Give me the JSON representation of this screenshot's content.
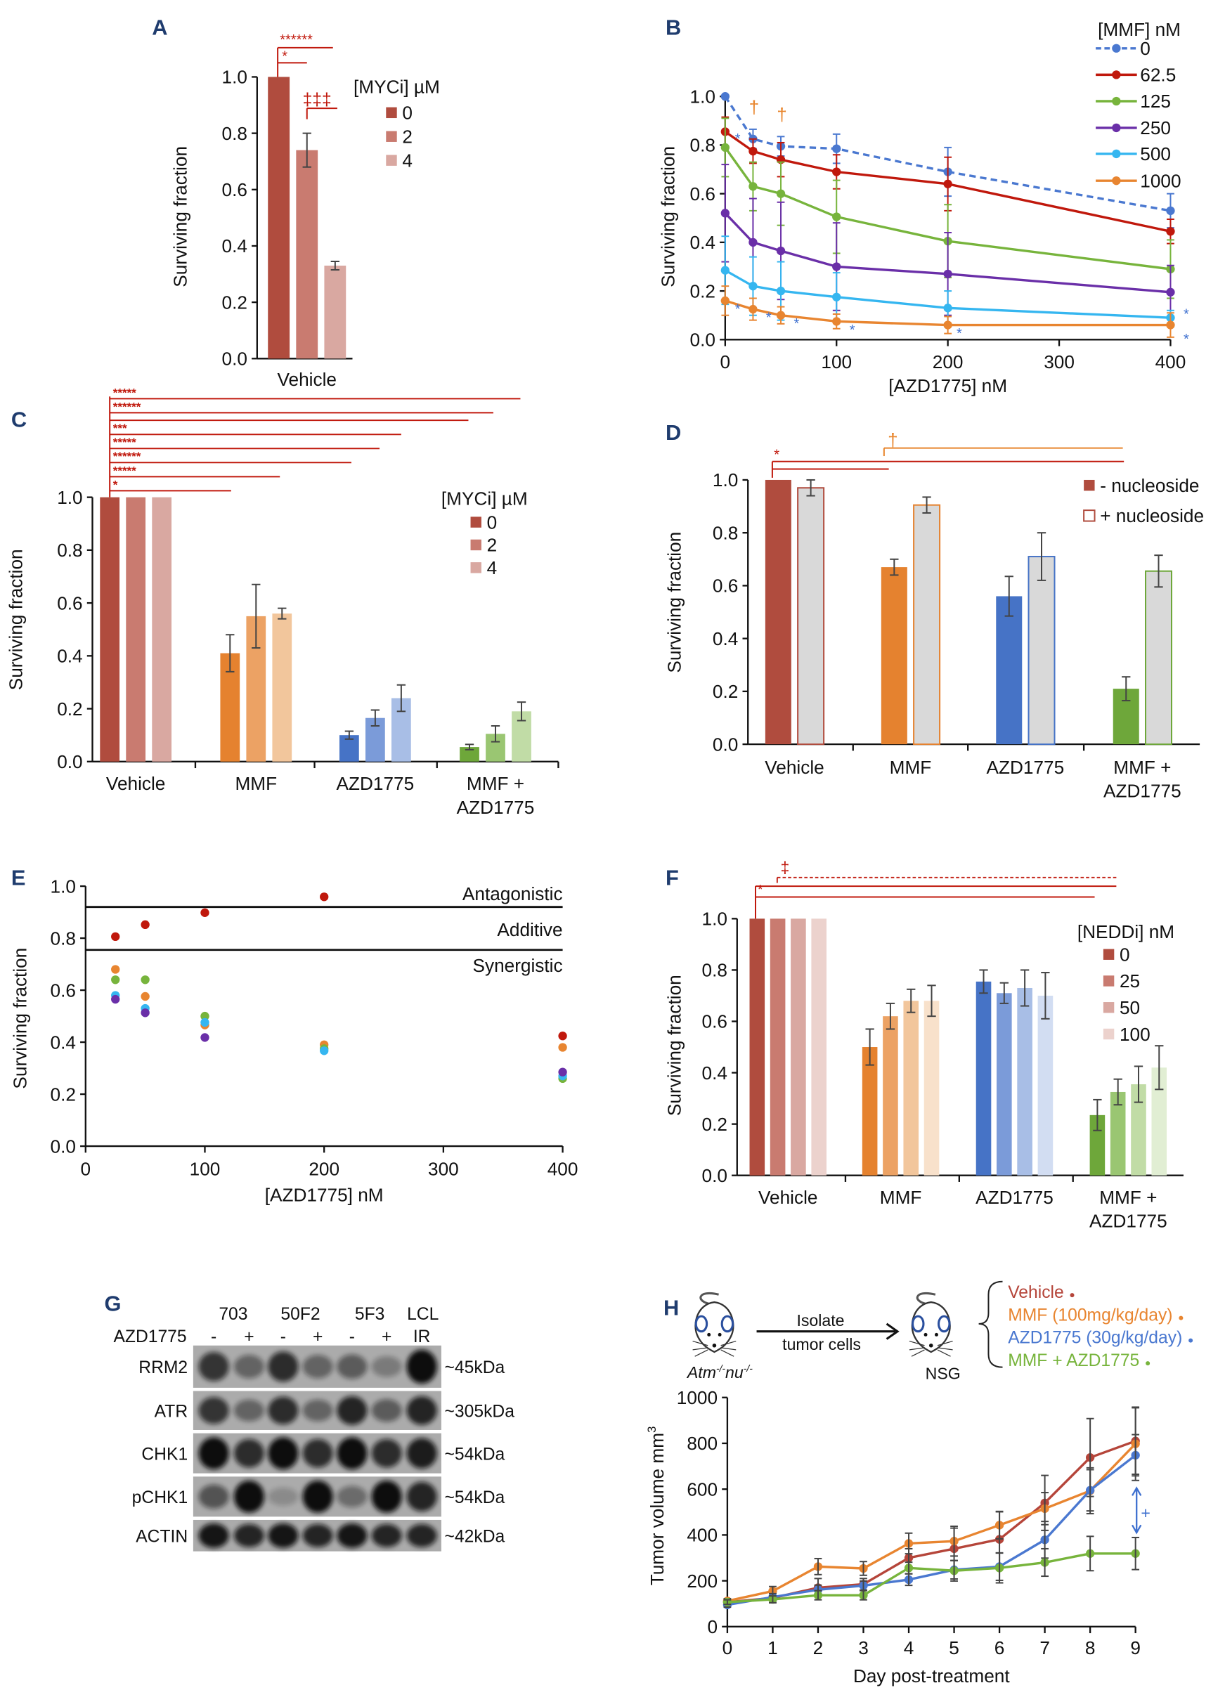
{
  "panel_letters": [
    "A",
    "B",
    "C",
    "D",
    "E",
    "F",
    "G",
    "H"
  ],
  "colors": {
    "vehicle": [
      "#b04c3e",
      "#c97b70",
      "#d9a8a1",
      "#ecd2cd"
    ],
    "mmf": [
      "#e5822f",
      "#eca264",
      "#f2c69c",
      "#f8e1cb"
    ],
    "azd": [
      "#4673c6",
      "#7b9bd9",
      "#a8bee6",
      "#d2ddf2"
    ],
    "combo": [
      "#6ea73a",
      "#9ac672",
      "#c1dca6",
      "#e1eed3"
    ],
    "significance_red": "#c0180c",
    "significance_orange": "#e8852c",
    "significance_blue": "#3d6fcf",
    "panel_letter": "#1f3c6e"
  },
  "chart_data": [
    {
      "panel": "A",
      "type": "bar",
      "ylabel": "Surviving fraction",
      "ylim": [
        0,
        1
      ],
      "yticks": [
        "0.0",
        "0.2",
        "0.4",
        "0.6",
        "0.8",
        "1.0"
      ],
      "categories": [
        [
          "Vehicle"
        ]
      ],
      "legend_title": "[MYCi] µM",
      "legend_placement": "right",
      "series": [
        {
          "name": "0",
          "colors": [
            "#b04c3e"
          ],
          "values": [
            1.0
          ],
          "err": [
            0
          ]
        },
        {
          "name": "2",
          "colors": [
            "#c97b70"
          ],
          "values": [
            0.74
          ],
          "err": [
            0.06
          ]
        },
        {
          "name": "4",
          "colors": [
            "#d9a8a1"
          ],
          "values": [
            0.33
          ],
          "err": [
            0.015
          ]
        }
      ],
      "annotations": [
        "******",
        "*",
        "‡‡‡"
      ]
    },
    {
      "panel": "B",
      "type": "line",
      "xlabel": "[AZD1775] nM",
      "ylabel": "Surviving fraction",
      "xlim": [
        0,
        400
      ],
      "ylim": [
        0,
        1
      ],
      "xticks": [
        "0",
        "100",
        "200",
        "300",
        "400"
      ],
      "yticks": [
        "0.0",
        "0.2",
        "0.4",
        "0.6",
        "0.8",
        "1.0"
      ],
      "x": [
        0,
        25,
        50,
        100,
        200,
        400
      ],
      "legend_title": "[MMF] nM",
      "legend_placement": "top-right",
      "series": [
        {
          "name": "0",
          "color": "#4a78d0",
          "dashed": true,
          "values": [
            1.0,
            0.825,
            0.795,
            0.785,
            0.69,
            0.53
          ],
          "err": [
            0,
            0.04,
            0.04,
            0.06,
            0.1,
            0.07
          ]
        },
        {
          "name": "62.5",
          "color": "#c0180c",
          "values": [
            0.855,
            0.775,
            0.74,
            0.69,
            0.64,
            0.445
          ],
          "err": [
            0.06,
            0.05,
            0.07,
            0.07,
            0.11,
            0.05
          ]
        },
        {
          "name": "125",
          "color": "#77b43c",
          "values": [
            0.79,
            0.63,
            0.6,
            0.505,
            0.405,
            0.29
          ],
          "err": [
            0.12,
            0.1,
            0.13,
            0.15,
            0.15,
            0.12
          ]
        },
        {
          "name": "250",
          "color": "#6a2fa8",
          "values": [
            0.52,
            0.4,
            0.365,
            0.3,
            0.27,
            0.195
          ],
          "err": [
            0.2,
            0.18,
            0.2,
            0.18,
            0.17,
            0.11
          ]
        },
        {
          "name": "500",
          "color": "#35b6f0",
          "values": [
            0.285,
            0.22,
            0.2,
            0.175,
            0.13,
            0.09
          ],
          "err": [
            0.14,
            0.12,
            0.12,
            0.1,
            0.07,
            0.03
          ]
        },
        {
          "name": "1000",
          "color": "#e88530",
          "values": [
            0.16,
            0.125,
            0.1,
            0.075,
            0.06,
            0.06
          ],
          "err": [
            0.06,
            0.045,
            0.035,
            0.03,
            0.035,
            0.05
          ]
        }
      ],
      "annotations": {
        "dagger": "†",
        "asterisk": "*"
      }
    },
    {
      "panel": "C",
      "type": "bar",
      "ylabel": "Surviving fraction",
      "ylim": [
        0,
        1
      ],
      "yticks": [
        "0.0",
        "0.2",
        "0.4",
        "0.6",
        "0.8",
        "1.0"
      ],
      "categories": [
        [
          "Vehicle"
        ],
        [
          "MMF"
        ],
        [
          "AZD1775"
        ],
        [
          "MMF +",
          "AZD1775"
        ]
      ],
      "legend_title": "[MYCi] µM",
      "legend_placement": "right",
      "series": [
        {
          "name": "0",
          "colors": [
            "#b04c3e",
            "#e5822f",
            "#4673c6",
            "#6ea73a"
          ],
          "values": [
            1.0,
            0.41,
            0.1,
            0.055
          ],
          "err": [
            0,
            0.07,
            0.015,
            0.01
          ]
        },
        {
          "name": "2",
          "colors": [
            "#c97b70",
            "#eca264",
            "#7b9bd9",
            "#9ac672"
          ],
          "values": [
            1.0,
            0.55,
            0.165,
            0.105
          ],
          "err": [
            0,
            0.12,
            0.03,
            0.03
          ]
        },
        {
          "name": "4",
          "colors": [
            "#d9a8a1",
            "#f2c69c",
            "#a8bee6",
            "#c1dca6"
          ],
          "values": [
            1.0,
            0.56,
            0.24,
            0.19
          ],
          "err": [
            0,
            0.02,
            0.05,
            0.035
          ]
        }
      ],
      "annotations": [
        "*****",
        "******",
        "***",
        "*****",
        "******",
        "*****",
        "*"
      ]
    },
    {
      "panel": "D",
      "type": "bar",
      "ylabel": "Surviving fraction",
      "ylim": [
        0,
        1
      ],
      "yticks": [
        "0.0",
        "0.2",
        "0.4",
        "0.6",
        "0.8",
        "1.0"
      ],
      "categories": [
        [
          "Vehicle"
        ],
        [
          "MMF"
        ],
        [
          "AZD1775"
        ],
        [
          "MMF +",
          "AZD1775"
        ]
      ],
      "legend_placement": "top-right",
      "series": [
        {
          "name": "- nucleoside",
          "colors": [
            "#b04c3e",
            "#e5822f",
            "#4673c6",
            "#6ea73a"
          ],
          "values": [
            1.0,
            0.67,
            0.56,
            0.21
          ],
          "err": [
            0,
            0.03,
            0.075,
            0.045
          ]
        },
        {
          "name": "+ nucleoside",
          "fill": "#d9d9d9",
          "stroke_colors": [
            "#b04c3e",
            "#e5822f",
            "#4673c6",
            "#6ea73a"
          ],
          "values": [
            0.97,
            0.905,
            0.71,
            0.655
          ],
          "err": [
            0.03,
            0.03,
            0.09,
            0.06
          ]
        }
      ],
      "annotations": [
        "*",
        "†"
      ]
    },
    {
      "panel": "E",
      "type": "scatter",
      "xlabel": "[AZD1775] nM",
      "ylabel": "Surviving fraction",
      "xlim": [
        0,
        400
      ],
      "ylim": [
        0,
        1
      ],
      "xticks": [
        "0",
        "100",
        "200",
        "300",
        "400"
      ],
      "yticks": [
        "0.0",
        "0.2",
        "0.4",
        "0.6",
        "0.8",
        "1.0"
      ],
      "thresholds": [
        0.92,
        0.755
      ],
      "regions": [
        "Antagonistic",
        "Additive",
        "Synergistic"
      ],
      "series": [
        {
          "color": "#c0180c",
          "x": [
            25,
            50,
            100,
            200,
            400
          ],
          "values": [
            0.806,
            0.852,
            0.898,
            0.959,
            0.424
          ]
        },
        {
          "color": "#e88530",
          "x": [
            25,
            50,
            100,
            200,
            400
          ],
          "values": [
            0.68,
            0.576,
            0.466,
            0.39,
            0.38
          ]
        },
        {
          "color": "#77b43c",
          "x": [
            25,
            50,
            100,
            200,
            400
          ],
          "values": [
            0.64,
            0.64,
            0.5,
            0.375,
            0.26
          ]
        },
        {
          "color": "#35b6f0",
          "x": [
            25,
            50,
            100,
            200,
            400
          ],
          "values": [
            0.58,
            0.53,
            0.476,
            0.367,
            0.27
          ]
        },
        {
          "color": "#6a2fa8",
          "x": [
            25,
            50,
            100,
            400
          ],
          "values": [
            0.565,
            0.513,
            0.418,
            0.285
          ]
        }
      ]
    },
    {
      "panel": "F",
      "type": "bar",
      "ylabel": "Surviving fraction",
      "ylim": [
        0,
        1
      ],
      "yticks": [
        "0.0",
        "0.2",
        "0.4",
        "0.6",
        "0.8",
        "1.0"
      ],
      "categories": [
        [
          "Vehicle"
        ],
        [
          "MMF"
        ],
        [
          "AZD1775"
        ],
        [
          "MMF +",
          "AZD1775"
        ]
      ],
      "legend_title": "[NEDDi] nM",
      "legend_placement": "right",
      "series": [
        {
          "name": "0",
          "colors": [
            "#b04c3e",
            "#e5822f",
            "#4673c6",
            "#6ea73a"
          ],
          "values": [
            1.0,
            0.5,
            0.755,
            0.235
          ],
          "err": [
            0,
            0.07,
            0.045,
            0.06
          ]
        },
        {
          "name": "25",
          "colors": [
            "#c97b70",
            "#eca264",
            "#7b9bd9",
            "#9ac672"
          ],
          "values": [
            1.0,
            0.62,
            0.71,
            0.325
          ],
          "err": [
            0,
            0.05,
            0.04,
            0.05
          ]
        },
        {
          "name": "50",
          "colors": [
            "#d9a8a1",
            "#f2c69c",
            "#a8bee6",
            "#c1dca6"
          ],
          "values": [
            1.0,
            0.68,
            0.73,
            0.355
          ],
          "err": [
            0,
            0.045,
            0.07,
            0.07
          ]
        },
        {
          "name": "100",
          "colors": [
            "#ecd2cd",
            "#f8e1cb",
            "#d2ddf2",
            "#e1eed3"
          ],
          "values": [
            1.0,
            0.68,
            0.7,
            0.42
          ],
          "err": [
            0,
            0.06,
            0.09,
            0.085
          ]
        }
      ],
      "annotations": [
        "*",
        "‡"
      ]
    },
    {
      "panel": "H",
      "type": "line",
      "xlabel": "Day post-treatment",
      "ylabel": "Tumor volume mm",
      "ylabel_sup": "3",
      "xlim": [
        0,
        9
      ],
      "ylim": [
        0,
        1000
      ],
      "xticks": [
        "0",
        "1",
        "2",
        "3",
        "4",
        "5",
        "6",
        "7",
        "8",
        "9"
      ],
      "yticks": [
        "0",
        "200",
        "400",
        "600",
        "800",
        "1000"
      ],
      "x": [
        0,
        1,
        2,
        3,
        4,
        5,
        6,
        7,
        8,
        9
      ],
      "series": [
        {
          "name": "Vehicle",
          "color": "#b5453a",
          "values": [
            107,
            125,
            170,
            185,
            300,
            340,
            381,
            540,
            738,
            810
          ],
          "err": [
            10,
            20,
            40,
            25,
            40,
            90,
            120,
            120,
            170,
            145
          ]
        },
        {
          "name": "MMF (100mg/kg/day)",
          "color": "#e88530",
          "values": [
            112,
            155,
            262,
            254,
            363,
            373,
            443,
            515,
            593,
            798
          ],
          "err": [
            10,
            20,
            35,
            30,
            45,
            65,
            60,
            70,
            100,
            160
          ]
        },
        {
          "name": "AZD1775 (30g/kg/day)",
          "color": "#4a78d0",
          "values": [
            95,
            129,
            161,
            179,
            205,
            248,
            262,
            379,
            595,
            748
          ],
          "err": [
            10,
            15,
            20,
            20,
            25,
            40,
            60,
            80,
            90,
            90
          ]
        },
        {
          "name": "MMF + AZD1775",
          "color": "#77b43c",
          "values": [
            107,
            119,
            137,
            137,
            256,
            244,
            256,
            280,
            319,
            319
          ],
          "err": [
            10,
            15,
            20,
            20,
            25,
            45,
            65,
            60,
            75,
            70
          ]
        }
      ],
      "annotation": "+",
      "legend_dot": "●",
      "schematic": {
        "donor_gene": "Atm",
        "donor_sup1": "-/-",
        "donor_gene2": "nu",
        "donor_sup2": "-/-",
        "arrow_line1": "Isolate",
        "arrow_line2": "tumor cells",
        "recipient": "NSG"
      }
    }
  ],
  "western_blot": {
    "panel": "G",
    "cell_lines": [
      "703",
      "50F2",
      "5F3",
      "LCL"
    ],
    "treatment_label": "AZD1775",
    "lanes": [
      "-",
      "+",
      "-",
      "+",
      "-",
      "+",
      "IR"
    ],
    "rows": [
      {
        "protein": "RRM2",
        "size": "~45kDa",
        "intensity": [
          0.75,
          0.45,
          0.8,
          0.45,
          0.5,
          0.3,
          1.0
        ]
      },
      {
        "protein": "ATR",
        "size": "~305kDa",
        "intensity": [
          0.75,
          0.45,
          0.8,
          0.45,
          0.85,
          0.5,
          0.85
        ]
      },
      {
        "protein": "CHK1",
        "size": "~54kDa",
        "intensity": [
          1,
          0.8,
          1,
          0.8,
          1,
          0.8,
          0.9
        ]
      },
      {
        "protein": "pCHK1",
        "size": "~54kDa",
        "intensity": [
          0.55,
          1,
          0.2,
          1,
          0.4,
          1,
          0.85
        ]
      },
      {
        "protein": "ACTIN",
        "size": "~42kDa",
        "intensity": [
          0.95,
          0.85,
          0.95,
          0.85,
          0.95,
          0.85,
          0.85
        ]
      }
    ]
  }
}
